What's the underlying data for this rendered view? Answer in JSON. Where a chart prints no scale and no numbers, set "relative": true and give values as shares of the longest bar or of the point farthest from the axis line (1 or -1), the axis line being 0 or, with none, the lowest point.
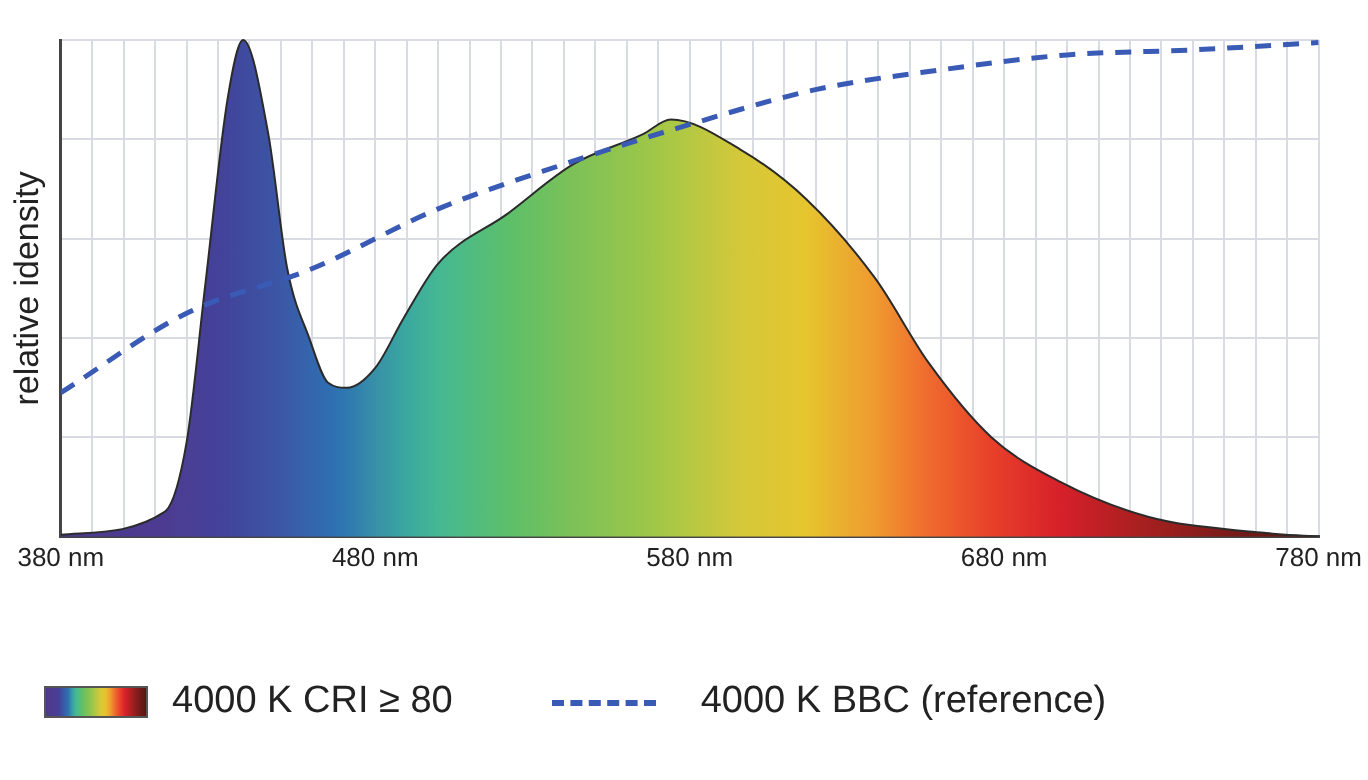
{
  "chart_data": {
    "type": "area",
    "relative": true,
    "ylabel": "relative idensity",
    "xlim": [
      380,
      780
    ],
    "xticks": [
      {
        "value": 380,
        "label": "380 nm"
      },
      {
        "value": 390,
        "label": null
      },
      {
        "value": 400,
        "label": null
      },
      {
        "value": 410,
        "label": null
      },
      {
        "value": 420,
        "label": null
      },
      {
        "value": 430,
        "label": null
      },
      {
        "value": 440,
        "label": null
      },
      {
        "value": 450,
        "label": null
      },
      {
        "value": 460,
        "label": null
      },
      {
        "value": 470,
        "label": null
      },
      {
        "value": 480,
        "label": "480 nm"
      },
      {
        "value": 490,
        "label": null
      },
      {
        "value": 500,
        "label": null
      },
      {
        "value": 510,
        "label": null
      },
      {
        "value": 520,
        "label": null
      },
      {
        "value": 530,
        "label": null
      },
      {
        "value": 540,
        "label": null
      },
      {
        "value": 550,
        "label": null
      },
      {
        "value": 560,
        "label": null
      },
      {
        "value": 570,
        "label": null
      },
      {
        "value": 580,
        "label": "580 nm"
      },
      {
        "value": 590,
        "label": null
      },
      {
        "value": 600,
        "label": null
      },
      {
        "value": 610,
        "label": null
      },
      {
        "value": 620,
        "label": null
      },
      {
        "value": 630,
        "label": null
      },
      {
        "value": 640,
        "label": null
      },
      {
        "value": 650,
        "label": null
      },
      {
        "value": 660,
        "label": null
      },
      {
        "value": 670,
        "label": null
      },
      {
        "value": 680,
        "label": "680 nm"
      },
      {
        "value": 690,
        "label": null
      },
      {
        "value": 700,
        "label": null
      },
      {
        "value": 710,
        "label": null
      },
      {
        "value": 720,
        "label": null
      },
      {
        "value": 730,
        "label": null
      },
      {
        "value": 740,
        "label": null
      },
      {
        "value": 750,
        "label": null
      },
      {
        "value": 760,
        "label": null
      },
      {
        "value": 770,
        "label": null
      },
      {
        "value": 780,
        "label": "780 nm"
      }
    ],
    "grid": true,
    "legend": "bottom",
    "series": [
      {
        "name": "4000 K CRI ≥ 80",
        "type": "area",
        "x": [
          380,
          413,
          420,
          426,
          433,
          438,
          446,
          452,
          459,
          465,
          471,
          480,
          489,
          500,
          522,
          543,
          565,
          574,
          596,
          617,
          639,
          656,
          676,
          698,
          726,
          759,
          780
        ],
        "values": [
          0.004,
          0.05,
          0.19,
          0.51,
          0.88,
          1,
          0.81,
          0.54,
          0.4,
          0.31,
          0.3,
          0.34,
          0.44,
          0.55,
          0.65,
          0.75,
          0.81,
          0.84,
          0.78,
          0.68,
          0.52,
          0.35,
          0.2,
          0.11,
          0.04,
          0.01,
          0
        ],
        "colors": [
          "#4b3a8c",
          "#4c3b90",
          "#4a3f95",
          "#463f98",
          "#42449c",
          "#3f4a9e",
          "#3d52a3",
          "#3a5aa8",
          "#3465ad",
          "#2f6db0",
          "#2f78b0",
          "#3890a8",
          "#3aa6a0",
          "#45b894",
          "#5cbf6a",
          "#7dc157",
          "#9ac64a",
          "#aac845",
          "#d4c83a",
          "#e6c52e",
          "#ef9a30",
          "#ef6a2e",
          "#e8402a",
          "#d6202a",
          "#a3201f",
          "#6e1a18",
          "#5a1515"
        ]
      },
      {
        "name": "4000 K BBC (reference)",
        "type": "line",
        "color": "#3a5bb5",
        "line_style": "dashed",
        "marker": "none",
        "x": [
          380,
          420,
          460,
          500,
          540,
          580,
          620,
          660,
          700,
          740,
          780
        ],
        "values": [
          0.29,
          0.45,
          0.54,
          0.66,
          0.75,
          0.83,
          0.9,
          0.94,
          0.97,
          0.98,
          0.995
        ]
      }
    ]
  }
}
